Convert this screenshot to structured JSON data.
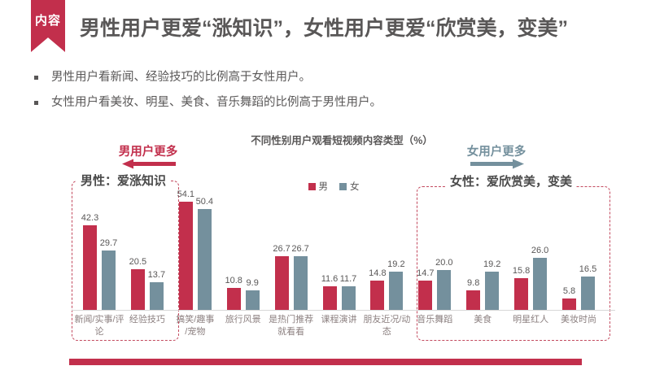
{
  "ribbon": {
    "label": "内容"
  },
  "title": "男性用户更爱“涨知识”，女性用户更爱“欣赏美，变美”",
  "bullets": [
    "男性用户看新闻、经验技巧的比例高于女性用户。",
    "女性用户看美妆、明星、美食、音乐舞蹈的比例高于男性用户。"
  ],
  "direction_labels": {
    "male_more": "男用户更多",
    "female_more": "女用户更多"
  },
  "annotation_boxes": {
    "male": "男性：爱涨知识",
    "female": "女性：爱欣赏美，变美"
  },
  "colors": {
    "male": "#C22F4C",
    "female": "#74909D",
    "dashed_border": "#C34A5F",
    "text_dark": "#595757",
    "category_label": "#8C8080",
    "accent_red": "#C22F4C"
  },
  "chart_data": {
    "type": "bar",
    "title": "不同性别用户观看短视频内容类型（%）",
    "legend": [
      "男",
      "女"
    ],
    "legend_position": "top-center",
    "grid": false,
    "ylim": [
      0,
      60
    ],
    "categories": [
      "新闻/实事/评论",
      "经验技巧",
      "搞笑/趣事/宠物",
      "旅行风景",
      "是热门推荐就看看",
      "课程演讲",
      "朋友近况/动态",
      "音乐舞蹈",
      "美食",
      "明星红人",
      "美妆时尚"
    ],
    "categories_display": [
      "新闻/实事/评\n论",
      "经验技巧",
      "搞笑/趣事\n/宠物",
      "旅行风景",
      "是热门推荐\n就看看",
      "课程演讲",
      "朋友近况/动\n态",
      "音乐舞蹈",
      "美食",
      "明星红人",
      "美妆时尚"
    ],
    "series": [
      {
        "name": "男",
        "color": "#C22F4C",
        "values": [
          42.3,
          20.5,
          54.1,
          10.8,
          26.7,
          11.6,
          14.8,
          14.7,
          9.8,
          15.8,
          5.8
        ]
      },
      {
        "name": "女",
        "color": "#74909D",
        "values": [
          29.7,
          13.7,
          50.4,
          9.9,
          26.7,
          11.7,
          19.2,
          20.0,
          19.2,
          26.0,
          16.5
        ]
      }
    ]
  }
}
